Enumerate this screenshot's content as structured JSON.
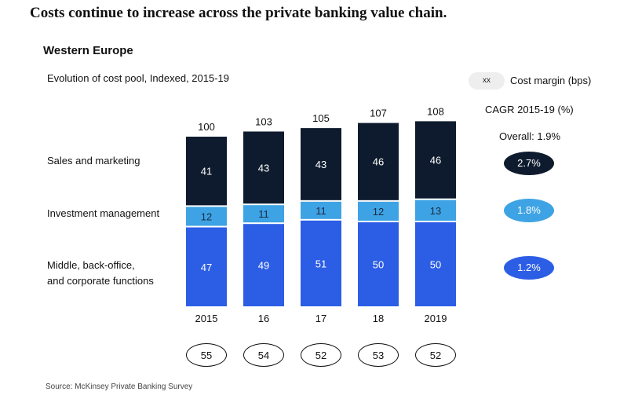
{
  "headline": "Costs continue to increase across the private banking value chain.",
  "region": "Western Europe",
  "subtitle_bold": "Evolution of cost pool,",
  "subtitle_rest": " Indexed, 2015-19",
  "legend": {
    "pill": "xx",
    "label": "Cost margin (bps)"
  },
  "cagr": {
    "title": "CAGR 2015-19 (%)",
    "overall": "Overall: 1.9%",
    "values": [
      "2.7%",
      "1.8%",
      "1.2%"
    ]
  },
  "row_labels": [
    "Sales and marketing",
    "Investment management",
    "Middle, back-office,",
    "and corporate functions"
  ],
  "source": "Source: McKinsey Private Banking Survey",
  "colors": {
    "dark": "#0e1b2e",
    "light": "#3ea3e4",
    "blue": "#2c5de5"
  },
  "chart_data": {
    "type": "bar",
    "stacked": true,
    "categories": [
      "2015",
      "16",
      "17",
      "18",
      "2019"
    ],
    "totals": [
      100,
      103,
      105,
      107,
      108
    ],
    "series": [
      {
        "name": "Middle, back-office, and corporate functions",
        "values": [
          47,
          49,
          51,
          50,
          50
        ]
      },
      {
        "name": "Investment management",
        "values": [
          12,
          11,
          11,
          12,
          13
        ]
      },
      {
        "name": "Sales and marketing",
        "values": [
          41,
          43,
          43,
          46,
          46
        ]
      }
    ],
    "cost_margin_bps": [
      55,
      54,
      52,
      53,
      52
    ]
  }
}
